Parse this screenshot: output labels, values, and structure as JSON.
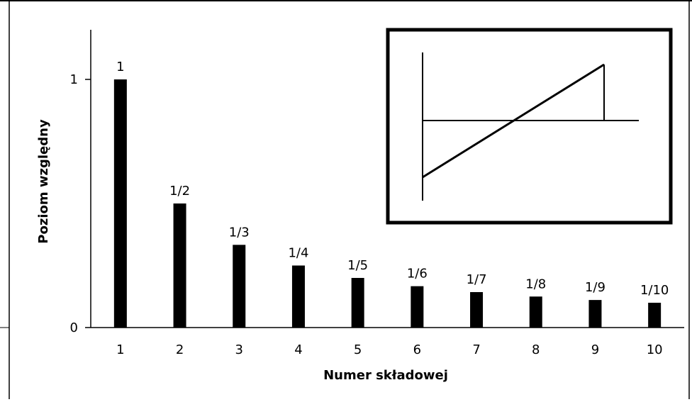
{
  "chart_data": {
    "type": "bar",
    "categories": [
      "1",
      "2",
      "3",
      "4",
      "5",
      "6",
      "7",
      "8",
      "9",
      "10"
    ],
    "values": [
      1,
      0.5,
      0.3333,
      0.25,
      0.2,
      0.1667,
      0.1429,
      0.125,
      0.1111,
      0.1
    ],
    "value_labels": [
      "1",
      "1/2",
      "1/3",
      "1/4",
      "1/5",
      "1/6",
      "1/7",
      "1/8",
      "1/9",
      "1/10"
    ],
    "xlabel": "Numer składowej",
    "ylabel": "Poziom względny",
    "ylim": [
      0,
      1
    ],
    "y_ticks": [
      "0",
      "1"
    ],
    "bar_color": "#000000",
    "grid": false,
    "legend": "none",
    "inset": {
      "type": "sawtooth waveform",
      "description_visible": false
    }
  }
}
